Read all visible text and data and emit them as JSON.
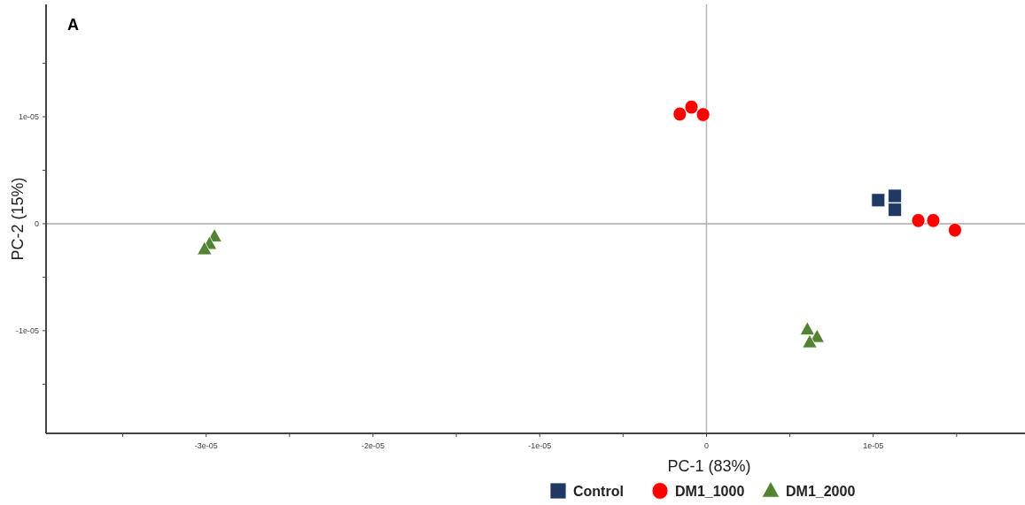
{
  "chart_data": {
    "type": "scatter",
    "xlabel": "PC-1 (83%)",
    "ylabel": "PC-2 (15%)",
    "annotations": [
      "A"
    ],
    "xlim": [
      -3.96e-05,
      1.91e-05
    ],
    "ylim": [
      -1.96e-05,
      2.05e-05
    ],
    "xticks": [
      {
        "value": -3.5e-05,
        "label": null
      },
      {
        "value": -3e-05,
        "label": "-3e-05"
      },
      {
        "value": -2.5e-05,
        "label": null
      },
      {
        "value": -2e-05,
        "label": "-2e-05"
      },
      {
        "value": -1.5e-05,
        "label": null
      },
      {
        "value": -1e-05,
        "label": "-1e-05"
      },
      {
        "value": -5e-06,
        "label": null
      },
      0,
      {
        "value": 5e-06,
        "label": null
      },
      {
        "value": 1e-05,
        "label": "1e-05"
      },
      {
        "value": 1.5e-05,
        "label": null
      }
    ],
    "yticks": [
      {
        "value": -1.5e-05,
        "label": null
      },
      {
        "value": -1e-05,
        "label": "-1e-05"
      },
      {
        "value": -5e-06,
        "label": null
      },
      0,
      {
        "value": 5e-06,
        "label": null
      },
      {
        "value": 1e-05,
        "label": "1e-05"
      },
      {
        "value": 1.5e-05,
        "label": null
      }
    ],
    "ref_lines": [
      {
        "axis": "x",
        "value": 0,
        "color": "#b4b4b4"
      },
      {
        "axis": "y",
        "value": 0,
        "color": "#a8a8a8"
      }
    ],
    "grid": false,
    "legend": "bottom",
    "series": [
      {
        "name": "Control",
        "color": "#203864",
        "marker": "square",
        "x": [
          1.03e-05,
          1.13e-05,
          1.13e-05
        ],
        "values": [
          2.2e-06,
          2.6e-06,
          1.3e-06
        ]
      },
      {
        "name": "DM1_1000",
        "color": "#ff0000",
        "marker": "circle",
        "x": [
          -1.6e-06,
          -9e-07,
          -2e-07,
          1.27e-05,
          1.36e-05,
          1.49e-05
        ],
        "values": [
          1.025e-05,
          1.09e-05,
          1.02e-05,
          3e-07,
          3e-07,
          -6e-07
        ]
      },
      {
        "name": "DM1_2000",
        "color": "#548235",
        "marker": "triangle",
        "x": [
          -2.95e-05,
          -2.98e-05,
          -3.01e-05,
          6.05e-06,
          6.63e-06,
          6.19e-06
        ],
        "values": [
          -1.2e-06,
          -1.9e-06,
          -2.4e-06,
          -9.9e-06,
          -1.06e-05,
          -1.11e-05
        ]
      }
    ]
  }
}
